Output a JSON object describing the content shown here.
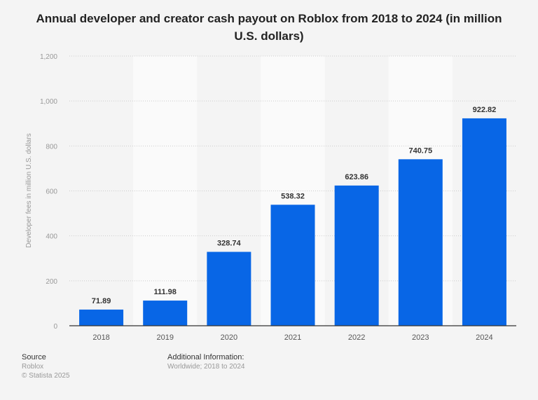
{
  "chart_data": {
    "type": "bar",
    "title": "Annual developer and creator cash payout on Roblox from 2018 to 2024 (in million U.S. dollars)",
    "xlabel": "",
    "ylabel": "Developer fees in million U.S. dollars",
    "categories": [
      "2018",
      "2019",
      "2020",
      "2021",
      "2022",
      "2023",
      "2024"
    ],
    "values": [
      71.89,
      111.98,
      328.74,
      538.32,
      623.86,
      740.75,
      922.82
    ],
    "data_labels": [
      "71.89",
      "111.98",
      "328.74",
      "538.32",
      "623.86",
      "740.75",
      "922.82"
    ],
    "ylim": [
      0,
      1200
    ],
    "yticks": [
      0,
      200,
      400,
      600,
      800,
      1000,
      1200
    ],
    "ytick_labels": [
      "0",
      "200",
      "400",
      "600",
      "800",
      "1,000",
      "1,200"
    ],
    "grid": true,
    "bar_color": "#0866e6"
  },
  "footer": {
    "source_label": "Source",
    "source": "Roblox",
    "copyright": "© Statista 2025",
    "additional_label": "Additional Information:",
    "additional": "Worldwide; 2018 to 2024"
  }
}
